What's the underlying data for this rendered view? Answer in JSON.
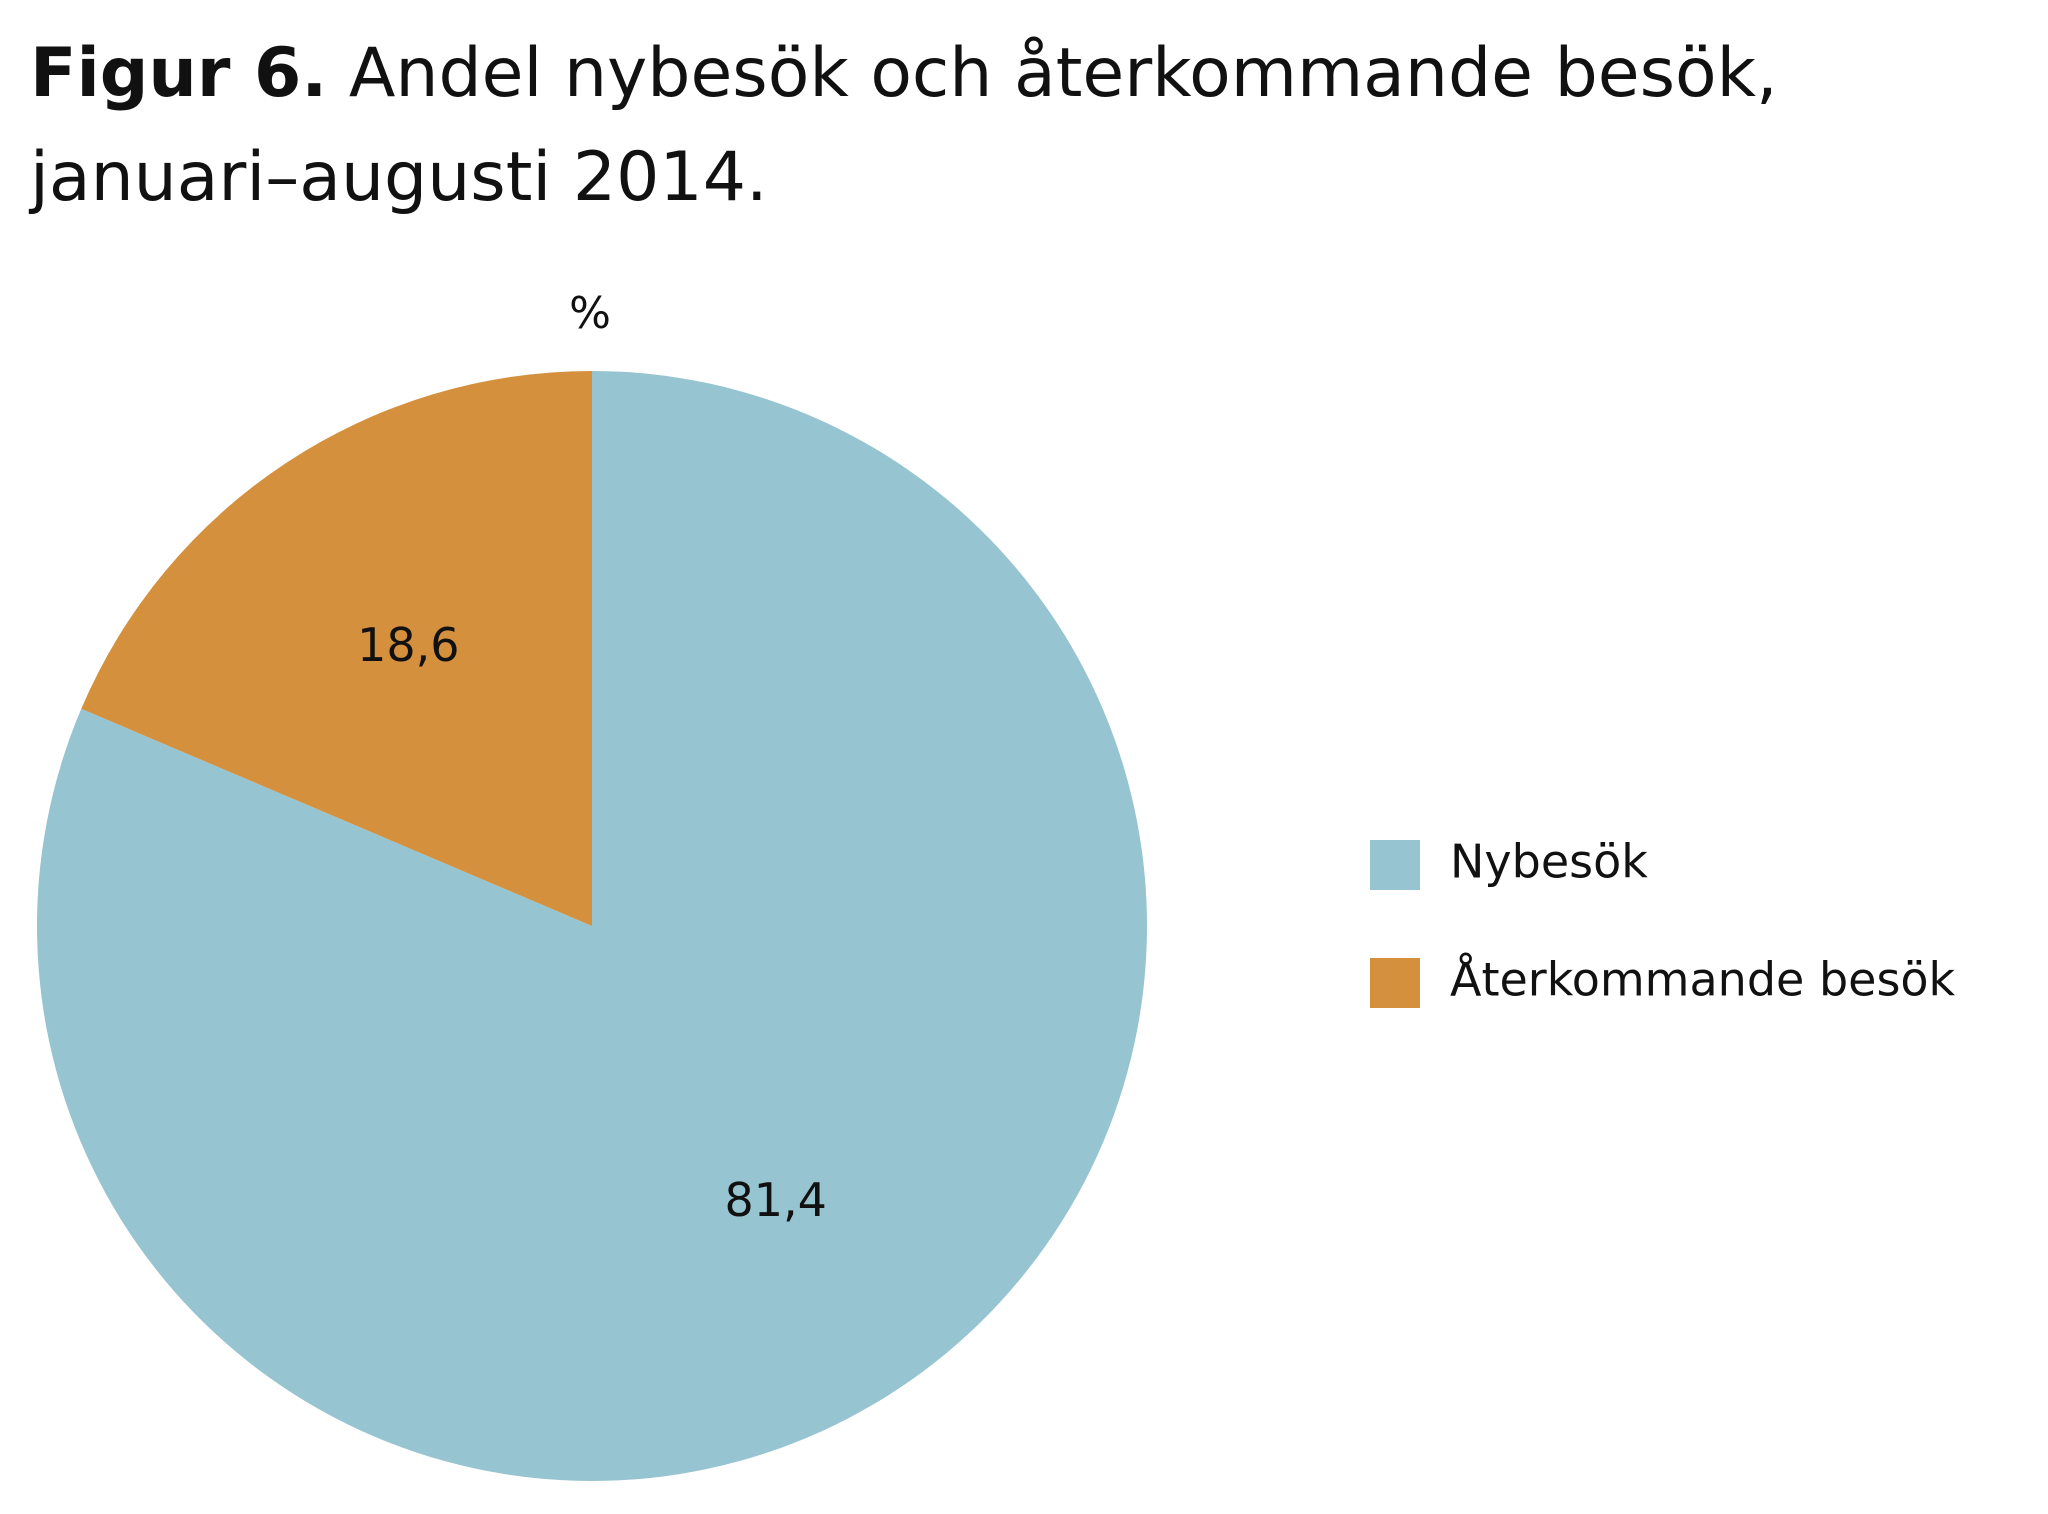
{
  "chart_data": {
    "type": "pie",
    "title_prefix": "Figur 6.",
    "title": "Andel nybesök och återkommande besök, januari–augusti 2014.",
    "unit": "%",
    "slices": [
      {
        "label": "Nybesök",
        "value": 81.4,
        "value_label": "81,4",
        "color": "#96c4d0"
      },
      {
        "label": "Återkommande besök",
        "value": 18.6,
        "value_label": "18,6",
        "color": "#d4903c"
      }
    ],
    "start_angle": "12 o'clock",
    "direction": "clockwise",
    "legend_position": "right"
  }
}
